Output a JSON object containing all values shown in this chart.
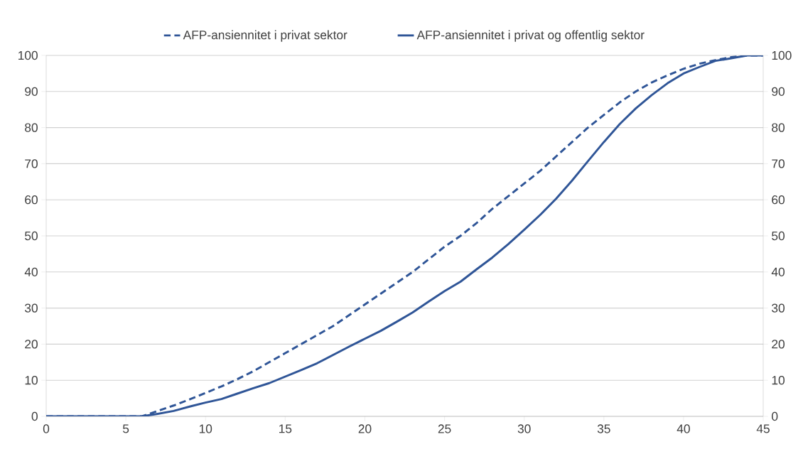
{
  "chart_data": {
    "type": "line",
    "x": [
      0,
      1,
      2,
      3,
      4,
      5,
      6,
      7,
      8,
      9,
      10,
      11,
      12,
      13,
      14,
      15,
      16,
      17,
      18,
      19,
      20,
      21,
      22,
      23,
      24,
      25,
      26,
      27,
      28,
      29,
      30,
      31,
      32,
      33,
      34,
      35,
      36,
      37,
      38,
      39,
      40,
      41,
      42,
      43,
      44,
      45
    ],
    "series": [
      {
        "name": "AFP-ansiennitet i privat sektor",
        "color": "#2f5597",
        "line_style": "dashed",
        "values": [
          0,
          0,
          0,
          0,
          0,
          0,
          0,
          1.5,
          3,
          4.7,
          6.5,
          8.3,
          10.3,
          12.5,
          15,
          17.5,
          20,
          22.5,
          25,
          28,
          31,
          34,
          37,
          40,
          43.5,
          47,
          50,
          53.5,
          57.5,
          61,
          64.5,
          68,
          72,
          76,
          80,
          83.5,
          87,
          90,
          92.5,
          94.5,
          96.3,
          97.7,
          98.7,
          99.5,
          100,
          100
        ]
      },
      {
        "name": "AFP-ansiennitet i privat og offentlig sektor",
        "color": "#2f5597",
        "line_style": "solid",
        "values": [
          0,
          0,
          0,
          0,
          0,
          0,
          0,
          0.7,
          1.5,
          2.7,
          3.8,
          4.8,
          6.3,
          7.8,
          9.2,
          11,
          12.8,
          14.7,
          17,
          19.3,
          21.5,
          23.7,
          26.2,
          28.8,
          31.8,
          34.7,
          37.3,
          40.7,
          44,
          47.7,
          51.7,
          55.8,
          60.3,
          65.3,
          70.7,
          76,
          81,
          85.3,
          89,
          92.3,
          95,
          96.8,
          98.5,
          99.2,
          100,
          100
        ]
      }
    ],
    "xlim": [
      0,
      45
    ],
    "xticks": [
      0,
      5,
      10,
      15,
      20,
      25,
      30,
      35,
      40,
      45
    ],
    "ylim": [
      0,
      100
    ],
    "yticks": [
      0,
      10,
      20,
      30,
      40,
      50,
      60,
      70,
      80,
      90,
      100
    ],
    "y2lim": [
      0,
      100
    ],
    "y2ticks": [
      0,
      10,
      20,
      30,
      40,
      50,
      60,
      70,
      80,
      90,
      100
    ],
    "grid": "y",
    "legend": "top",
    "marker": "none"
  }
}
